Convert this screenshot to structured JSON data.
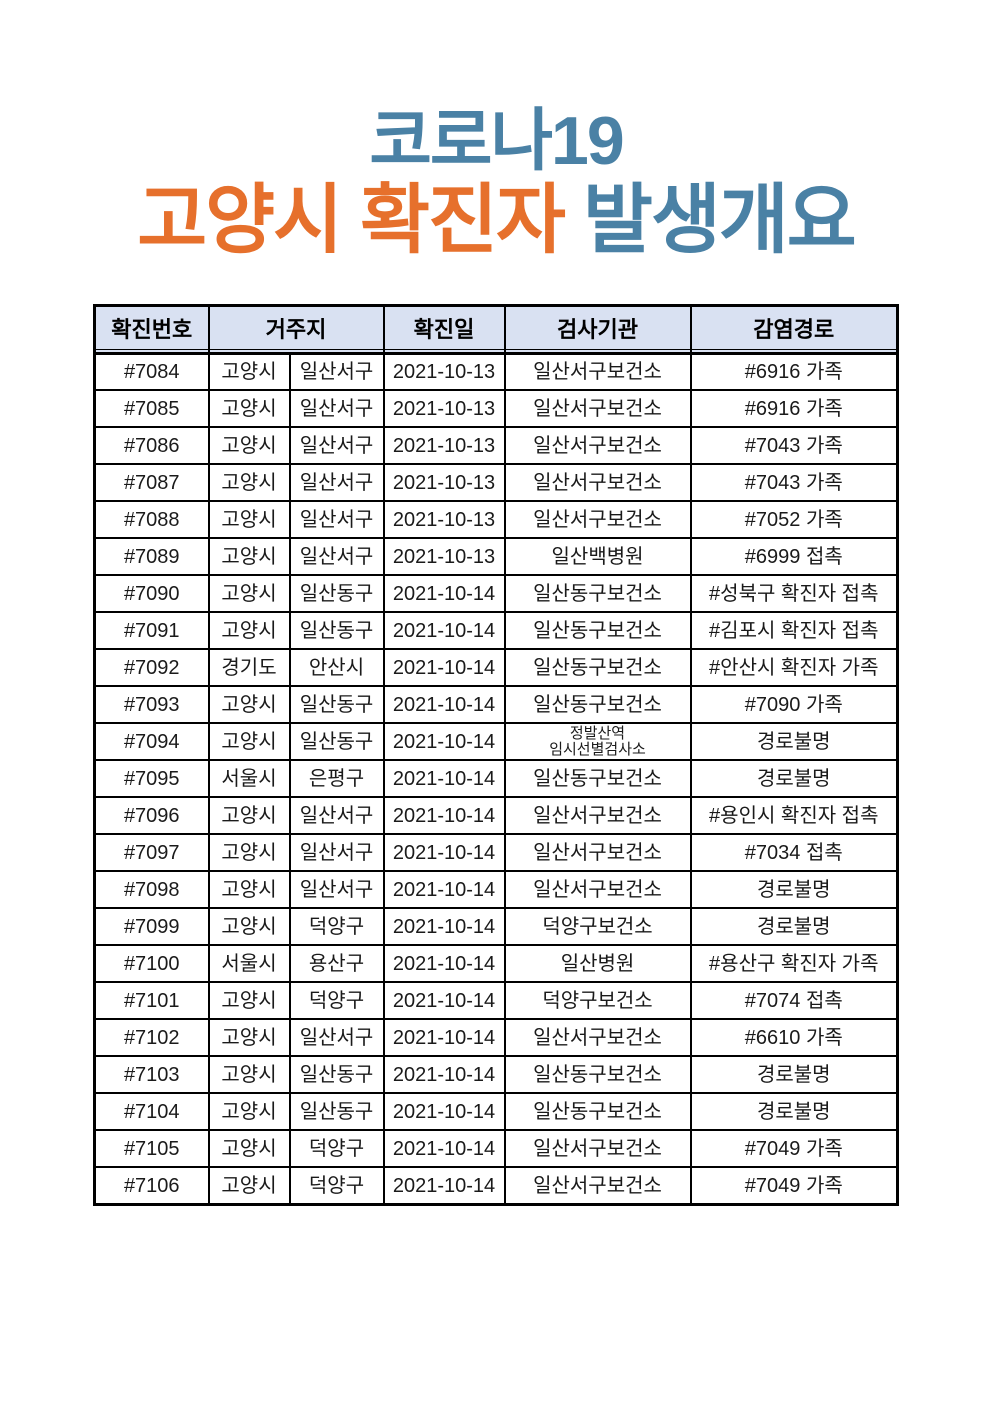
{
  "title": {
    "line1": "코로나19",
    "line2_orange": "고양시 확진자",
    "line2_blue": "발생개요"
  },
  "colors": {
    "title_blue": "#4a81a5",
    "title_orange": "#e6702c",
    "header_bg": "#d9e1f2",
    "border": "#000000"
  },
  "table": {
    "headers": [
      "확진번호",
      "거주지",
      "확진일",
      "검사기관",
      "감염경로"
    ],
    "rows": [
      [
        "#7084",
        "고양시",
        "일산서구",
        "2021-10-13",
        "일산서구보건소",
        "#6916 가족"
      ],
      [
        "#7085",
        "고양시",
        "일산서구",
        "2021-10-13",
        "일산서구보건소",
        "#6916 가족"
      ],
      [
        "#7086",
        "고양시",
        "일산서구",
        "2021-10-13",
        "일산서구보건소",
        "#7043 가족"
      ],
      [
        "#7087",
        "고양시",
        "일산서구",
        "2021-10-13",
        "일산서구보건소",
        "#7043 가족"
      ],
      [
        "#7088",
        "고양시",
        "일산서구",
        "2021-10-13",
        "일산서구보건소",
        "#7052 가족"
      ],
      [
        "#7089",
        "고양시",
        "일산서구",
        "2021-10-13",
        "일산백병원",
        "#6999 접촉"
      ],
      [
        "#7090",
        "고양시",
        "일산동구",
        "2021-10-14",
        "일산동구보건소",
        "#성북구 확진자 접촉"
      ],
      [
        "#7091",
        "고양시",
        "일산동구",
        "2021-10-14",
        "일산동구보건소",
        "#김포시 확진자 접촉"
      ],
      [
        "#7092",
        "경기도",
        "안산시",
        "2021-10-14",
        "일산동구보건소",
        "#안산시 확진자 가족"
      ],
      [
        "#7093",
        "고양시",
        "일산동구",
        "2021-10-14",
        "일산동구보건소",
        "#7090 가족"
      ],
      [
        "#7094",
        "고양시",
        "일산동구",
        "2021-10-14",
        "정발산역\n임시선별검사소",
        "경로불명"
      ],
      [
        "#7095",
        "서울시",
        "은평구",
        "2021-10-14",
        "일산동구보건소",
        "경로불명"
      ],
      [
        "#7096",
        "고양시",
        "일산서구",
        "2021-10-14",
        "일산서구보건소",
        "#용인시 확진자 접촉"
      ],
      [
        "#7097",
        "고양시",
        "일산서구",
        "2021-10-14",
        "일산서구보건소",
        "#7034 접촉"
      ],
      [
        "#7098",
        "고양시",
        "일산서구",
        "2021-10-14",
        "일산서구보건소",
        "경로불명"
      ],
      [
        "#7099",
        "고양시",
        "덕양구",
        "2021-10-14",
        "덕양구보건소",
        "경로불명"
      ],
      [
        "#7100",
        "서울시",
        "용산구",
        "2021-10-14",
        "일산병원",
        "#용산구 확진자 가족"
      ],
      [
        "#7101",
        "고양시",
        "덕양구",
        "2021-10-14",
        "덕양구보건소",
        "#7074 접촉"
      ],
      [
        "#7102",
        "고양시",
        "일산서구",
        "2021-10-14",
        "일산서구보건소",
        "#6610 가족"
      ],
      [
        "#7103",
        "고양시",
        "일산동구",
        "2021-10-14",
        "일산동구보건소",
        "경로불명"
      ],
      [
        "#7104",
        "고양시",
        "일산동구",
        "2021-10-14",
        "일산동구보건소",
        "경로불명"
      ],
      [
        "#7105",
        "고양시",
        "덕양구",
        "2021-10-14",
        "일산서구보건소",
        "#7049 가족"
      ],
      [
        "#7106",
        "고양시",
        "덕양구",
        "2021-10-14",
        "일산서구보건소",
        "#7049 가족"
      ]
    ]
  }
}
